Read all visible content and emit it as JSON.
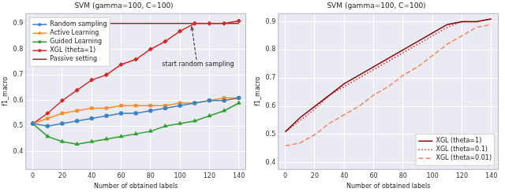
{
  "chart_data": [
    {
      "type": "line",
      "title": "SVM (gamma=100, C=100)",
      "x_label": "Number of obtained labels",
      "y_label": "f1_macro",
      "x": [
        0,
        10,
        20,
        30,
        40,
        50,
        60,
        70,
        80,
        90,
        100,
        110,
        120,
        130,
        140
      ],
      "xlim": [
        -5,
        145
      ],
      "xticks": [
        0,
        20,
        40,
        60,
        80,
        100,
        120,
        140
      ],
      "ylim": [
        0.33,
        0.94
      ],
      "yticks": [
        0.4,
        0.5,
        0.6,
        0.7,
        0.8,
        0.9
      ],
      "grid": true,
      "legend": "upper left",
      "series": [
        {
          "name": "Random sampling",
          "color": "#3b82c4",
          "marker": "circle",
          "line_style": "solid",
          "values": [
            0.51,
            0.5,
            0.51,
            0.52,
            0.53,
            0.54,
            0.55,
            0.55,
            0.56,
            0.57,
            0.58,
            0.59,
            0.6,
            0.6,
            0.61
          ]
        },
        {
          "name": "Active Learning",
          "color": "#ff8c1a",
          "marker": "square",
          "line_style": "solid",
          "values": [
            0.51,
            0.53,
            0.55,
            0.56,
            0.57,
            0.57,
            0.58,
            0.58,
            0.58,
            0.58,
            0.59,
            0.59,
            0.6,
            0.61,
            0.61
          ]
        },
        {
          "name": "Guided Learning",
          "color": "#2ca02c",
          "marker": "triangle",
          "line_style": "solid",
          "values": [
            0.51,
            0.46,
            0.44,
            0.43,
            0.44,
            0.45,
            0.46,
            0.47,
            0.48,
            0.5,
            0.51,
            0.52,
            0.54,
            0.56,
            0.59
          ]
        },
        {
          "name": "XGL (theta=1)",
          "color": "#d62728",
          "marker": "diamond",
          "line_style": "solid",
          "values": [
            0.51,
            0.55,
            0.6,
            0.64,
            0.68,
            0.7,
            0.74,
            0.76,
            0.8,
            0.83,
            0.87,
            0.9,
            0.9,
            0.9,
            0.91
          ]
        },
        {
          "name": "Passive setting",
          "color": "#8b2e2e",
          "marker": "none",
          "line_style": "solid",
          "values": [
            0.9,
            0.9,
            0.9,
            0.9,
            0.9,
            0.9,
            0.9,
            0.9,
            0.9,
            0.9,
            0.9,
            0.9,
            0.9,
            0.9,
            0.9
          ]
        }
      ],
      "annotations": [
        {
          "text": "start random sampling",
          "x": 108,
          "y": 0.9
        }
      ]
    },
    {
      "type": "line",
      "title": "SVM (gamma=100, C=100)",
      "x_label": "Number of obtained labels",
      "y_label": "f1_macro",
      "x": [
        0,
        10,
        20,
        30,
        40,
        50,
        60,
        70,
        80,
        90,
        100,
        110,
        120,
        130,
        140
      ],
      "xlim": [
        -5,
        145
      ],
      "xticks": [
        0,
        20,
        40,
        60,
        80,
        100,
        120,
        140
      ],
      "ylim": [
        0.375,
        0.93
      ],
      "yticks": [
        0.4,
        0.5,
        0.6,
        0.7,
        0.8,
        0.9
      ],
      "grid": true,
      "legend": "lower right",
      "series": [
        {
          "name": "XGL (theta=1)",
          "color": "#8b0000",
          "marker": "none",
          "line_style": "solid",
          "values": [
            0.51,
            0.56,
            0.6,
            0.64,
            0.68,
            0.71,
            0.74,
            0.77,
            0.8,
            0.83,
            0.86,
            0.89,
            0.9,
            0.9,
            0.91
          ]
        },
        {
          "name": "XGL (theta=0.1)",
          "color": "#e0302b",
          "marker": "none",
          "line_style": "dotted",
          "values": [
            0.51,
            0.55,
            0.59,
            0.64,
            0.67,
            0.7,
            0.73,
            0.76,
            0.79,
            0.82,
            0.85,
            0.88,
            0.9,
            0.9,
            0.91
          ]
        },
        {
          "name": "XGL (theta=0.01)",
          "color": "#f4845f",
          "marker": "none",
          "line_style": "dashed",
          "values": [
            0.46,
            0.47,
            0.5,
            0.54,
            0.57,
            0.6,
            0.64,
            0.67,
            0.71,
            0.74,
            0.78,
            0.82,
            0.85,
            0.88,
            0.89
          ]
        }
      ]
    }
  ]
}
